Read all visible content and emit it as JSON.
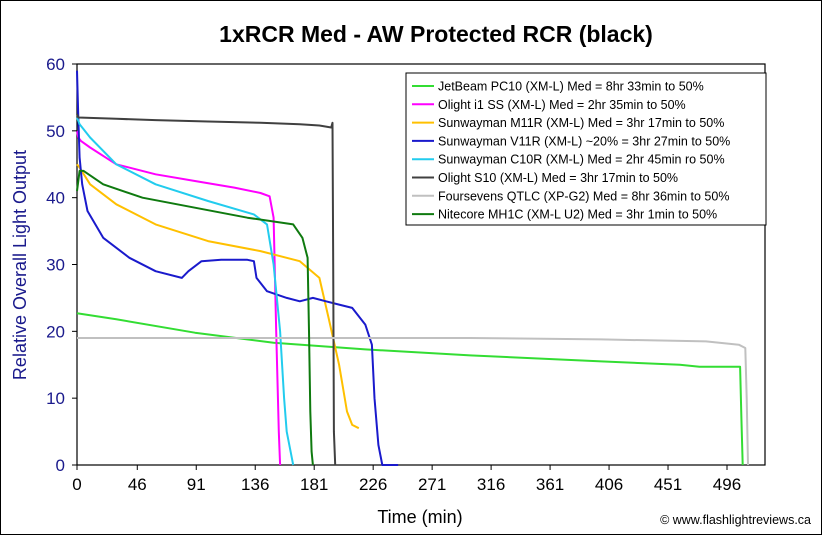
{
  "chart_data": {
    "type": "line",
    "title": "1xRCR Med - AW Protected RCR (black)",
    "xlabel": "Time (min)",
    "ylabel": "Relative Overall Light Output",
    "credit": "© www.flashlightreviews.ca",
    "xlim": [
      0,
      525
    ],
    "ylim": [
      0,
      60
    ],
    "x_ticks": [
      "0",
      "46",
      "91",
      "136",
      "181",
      "226",
      "271",
      "316",
      "361",
      "406",
      "451",
      "496"
    ],
    "y_ticks": [
      "0",
      "10",
      "20",
      "30",
      "40",
      "50",
      "60"
    ],
    "grid": false,
    "legend_position": "top-right",
    "colors": {
      "axis_labels": "#1a1a8c",
      "plot_background": "#ffffff",
      "border": "#000000"
    },
    "series": [
      {
        "name": "JetBeam PC10 (XM-L) Med = 8hr 33min to 50%",
        "color": "#33dd33",
        "x": [
          0,
          30,
          90,
          150,
          220,
          300,
          400,
          460,
          475,
          500,
          506,
          507,
          508
        ],
        "y": [
          22.7,
          21.8,
          19.8,
          18.3,
          17.3,
          16.4,
          15.5,
          15.0,
          14.7,
          14.7,
          14.7,
          7,
          0
        ]
      },
      {
        "name": "Olight i1 SS (XM-L) Med = 2hr 35min to 50%",
        "color": "#ff00ff",
        "x": [
          0,
          1,
          3,
          10,
          30,
          60,
          90,
          120,
          140,
          147,
          150,
          152,
          154,
          155
        ],
        "y": [
          50,
          49,
          48.5,
          47.5,
          45,
          43.5,
          42.5,
          41.5,
          40.7,
          40.2,
          37,
          20,
          5,
          0
        ]
      },
      {
        "name": "Sunwayman M11R (XM-L) Med = 3hr 17min to 50%",
        "color": "#ffc000",
        "x": [
          0,
          2,
          10,
          30,
          60,
          100,
          140,
          170,
          185,
          192,
          200,
          206,
          210,
          215
        ],
        "y": [
          45,
          44.5,
          42,
          39,
          36,
          33.5,
          32,
          30.5,
          28,
          22,
          15,
          8,
          6,
          5.5
        ]
      },
      {
        "name": "Sunwayman V11R (XM-L) ~20% = 3hr 27min to 50%",
        "color": "#1a1acc",
        "x": [
          0,
          1,
          2,
          4,
          8,
          20,
          40,
          60,
          80,
          85,
          95,
          110,
          120,
          130,
          135,
          137,
          145,
          160,
          170,
          180,
          190,
          200,
          210,
          220,
          225,
          227,
          230,
          233,
          245
        ],
        "y": [
          59,
          52,
          46,
          42,
          38,
          34,
          31,
          29,
          28,
          29,
          30.5,
          30.7,
          30.7,
          30.7,
          30.5,
          28,
          26,
          25,
          24.5,
          25,
          24.5,
          24,
          23.5,
          21,
          18,
          10,
          3,
          0,
          0
        ]
      },
      {
        "name": "Sunwayman C10R (XM-L) Med = 2hr 45min ro 50%",
        "color": "#22ccee",
        "x": [
          0,
          2,
          10,
          30,
          60,
          100,
          135,
          145,
          150,
          155,
          158,
          160,
          163,
          165
        ],
        "y": [
          52,
          51,
          49,
          45,
          42,
          39.5,
          37.5,
          36,
          30,
          20,
          10,
          5,
          2,
          0
        ]
      },
      {
        "name": "Olight S10 (XM-L) Med = 3hr 17min to 50%",
        "color": "#404040",
        "x": [
          0,
          1,
          30,
          60,
          100,
          140,
          170,
          185,
          194,
          195,
          195.5,
          196,
          197
        ],
        "y": [
          52.5,
          52,
          51.8,
          51.6,
          51.4,
          51.2,
          51,
          50.8,
          50.5,
          51.2,
          30,
          5,
          0
        ]
      },
      {
        "name": "Foursevens QTLC (XP-G2) Med = 8hr 36min to 50%",
        "color": "#c0c0c0",
        "x": [
          0,
          50,
          100,
          150,
          200,
          300,
          400,
          480,
          505,
          510,
          511,
          512
        ],
        "y": [
          19,
          19,
          19,
          19,
          19,
          19,
          18.8,
          18.5,
          18,
          17.5,
          10,
          0
        ]
      },
      {
        "name": "Nitecore MH1C (XM-L U2) Med = 3hr 1min to 50%",
        "color": "#0f7a0f",
        "x": [
          0,
          2,
          5,
          20,
          50,
          90,
          130,
          165,
          172,
          176,
          177,
          178,
          179,
          180
        ],
        "y": [
          41,
          44,
          44,
          42,
          40,
          38.5,
          37,
          36,
          34,
          31,
          20,
          8,
          2,
          0
        ]
      }
    ]
  }
}
